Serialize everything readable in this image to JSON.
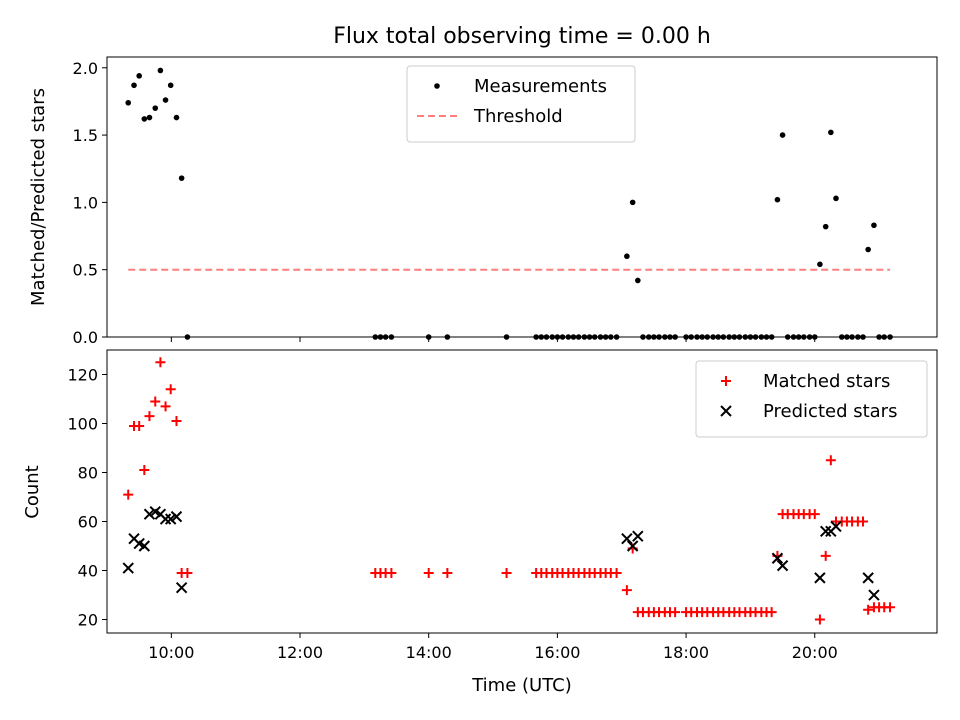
{
  "chart_data": [
    {
      "type": "scatter",
      "title": "Flux total observing time = 0.00 h",
      "xlabel": "",
      "ylabel": "Matched/Predicted stars",
      "xlim": [
        9.0,
        21.9
      ],
      "ylim": [
        0,
        2.08
      ],
      "yticks": [
        0.0,
        0.5,
        1.0,
        1.5,
        2.0
      ],
      "ytick_labels": [
        "0.0",
        "0.5",
        "1.0",
        "1.5",
        "2.0"
      ],
      "legend_position": "top-center",
      "series": [
        {
          "name": "Measurements",
          "marker": "dot",
          "color": "#000000",
          "points": [
            [
              9.33,
              1.74
            ],
            [
              9.42,
              1.87
            ],
            [
              9.5,
              1.94
            ],
            [
              9.58,
              1.62
            ],
            [
              9.66,
              1.63
            ],
            [
              9.75,
              1.7
            ],
            [
              9.83,
              1.98
            ],
            [
              9.91,
              1.76
            ],
            [
              9.99,
              1.87
            ],
            [
              10.08,
              1.63
            ],
            [
              10.16,
              1.18
            ],
            [
              10.25,
              0.0
            ],
            [
              13.17,
              0.0
            ],
            [
              13.25,
              0.0
            ],
            [
              13.33,
              0.0
            ],
            [
              13.42,
              0.0
            ],
            [
              14.0,
              0.0
            ],
            [
              14.29,
              0.0
            ],
            [
              15.21,
              0.0
            ],
            [
              15.67,
              0.0
            ],
            [
              15.75,
              0.0
            ],
            [
              15.83,
              0.0
            ],
            [
              15.92,
              0.0
            ],
            [
              16.0,
              0.0
            ],
            [
              16.08,
              0.0
            ],
            [
              16.17,
              0.0
            ],
            [
              16.25,
              0.0
            ],
            [
              16.33,
              0.0
            ],
            [
              16.42,
              0.0
            ],
            [
              16.5,
              0.0
            ],
            [
              16.58,
              0.0
            ],
            [
              16.67,
              0.0
            ],
            [
              16.75,
              0.0
            ],
            [
              16.83,
              0.0
            ],
            [
              16.92,
              0.0
            ],
            [
              17.08,
              0.6
            ],
            [
              17.17,
              1.0
            ],
            [
              17.25,
              0.42
            ],
            [
              17.33,
              0.0
            ],
            [
              17.42,
              0.0
            ],
            [
              17.5,
              0.0
            ],
            [
              17.58,
              0.0
            ],
            [
              17.67,
              0.0
            ],
            [
              17.75,
              0.0
            ],
            [
              17.83,
              0.0
            ],
            [
              18.0,
              0.0
            ],
            [
              18.08,
              0.0
            ],
            [
              18.17,
              0.0
            ],
            [
              18.25,
              0.0
            ],
            [
              18.33,
              0.0
            ],
            [
              18.42,
              0.0
            ],
            [
              18.5,
              0.0
            ],
            [
              18.58,
              0.0
            ],
            [
              18.67,
              0.0
            ],
            [
              18.75,
              0.0
            ],
            [
              18.83,
              0.0
            ],
            [
              18.92,
              0.0
            ],
            [
              19.0,
              0.0
            ],
            [
              19.08,
              0.0
            ],
            [
              19.17,
              0.0
            ],
            [
              19.25,
              0.0
            ],
            [
              19.33,
              0.0
            ],
            [
              19.42,
              1.02
            ],
            [
              19.5,
              1.5
            ],
            [
              19.58,
              0.0
            ],
            [
              19.67,
              0.0
            ],
            [
              19.75,
              0.0
            ],
            [
              19.83,
              0.0
            ],
            [
              19.92,
              0.0
            ],
            [
              20.0,
              0.0
            ],
            [
              20.08,
              0.54
            ],
            [
              20.17,
              0.82
            ],
            [
              20.25,
              1.52
            ],
            [
              20.33,
              1.03
            ],
            [
              20.42,
              0.0
            ],
            [
              20.5,
              0.0
            ],
            [
              20.58,
              0.0
            ],
            [
              20.67,
              0.0
            ],
            [
              20.75,
              0.0
            ],
            [
              20.83,
              0.65
            ],
            [
              20.92,
              0.83
            ],
            [
              21.0,
              0.0
            ],
            [
              21.08,
              0.0
            ],
            [
              21.17,
              0.0
            ]
          ]
        },
        {
          "name": "Threshold",
          "type": "line",
          "style": "dashed",
          "color": "#ff7f7f",
          "points": [
            [
              9.33,
              0.5
            ],
            [
              21.17,
              0.5
            ]
          ]
        }
      ]
    },
    {
      "type": "scatter",
      "title": "",
      "xlabel": "Time (UTC)",
      "ylabel": "Count",
      "xlim": [
        9.0,
        21.9
      ],
      "ylim": [
        14.5,
        130
      ],
      "xticks": [
        10,
        12,
        14,
        16,
        18,
        20
      ],
      "xtick_labels": [
        "10:00",
        "12:00",
        "14:00",
        "16:00",
        "18:00",
        "20:00"
      ],
      "yticks": [
        20,
        40,
        60,
        80,
        100,
        120
      ],
      "ytick_labels": [
        "20",
        "40",
        "60",
        "80",
        "100",
        "120"
      ],
      "legend_position": "top-right",
      "series": [
        {
          "name": "Matched stars",
          "marker": "plus",
          "color": "#ff0000",
          "points": [
            [
              9.33,
              71
            ],
            [
              9.42,
              99
            ],
            [
              9.5,
              99
            ],
            [
              9.58,
              81
            ],
            [
              9.66,
              103
            ],
            [
              9.75,
              109
            ],
            [
              9.83,
              125
            ],
            [
              9.91,
              107
            ],
            [
              9.99,
              114
            ],
            [
              10.08,
              101
            ],
            [
              10.16,
              39
            ],
            [
              10.25,
              39
            ],
            [
              13.17,
              39
            ],
            [
              13.25,
              39
            ],
            [
              13.33,
              39
            ],
            [
              13.42,
              39
            ],
            [
              14.0,
              39
            ],
            [
              14.29,
              39
            ],
            [
              15.21,
              39
            ],
            [
              15.67,
              39
            ],
            [
              15.75,
              39
            ],
            [
              15.83,
              39
            ],
            [
              15.92,
              39
            ],
            [
              16.0,
              39
            ],
            [
              16.08,
              39
            ],
            [
              16.17,
              39
            ],
            [
              16.25,
              39
            ],
            [
              16.33,
              39
            ],
            [
              16.42,
              39
            ],
            [
              16.5,
              39
            ],
            [
              16.58,
              39
            ],
            [
              16.67,
              39
            ],
            [
              16.75,
              39
            ],
            [
              16.83,
              39
            ],
            [
              16.92,
              39
            ],
            [
              17.08,
              32
            ],
            [
              17.17,
              49
            ],
            [
              17.25,
              23
            ],
            [
              17.33,
              23
            ],
            [
              17.42,
              23
            ],
            [
              17.5,
              23
            ],
            [
              17.58,
              23
            ],
            [
              17.67,
              23
            ],
            [
              17.75,
              23
            ],
            [
              17.83,
              23
            ],
            [
              18.0,
              23
            ],
            [
              18.08,
              23
            ],
            [
              18.17,
              23
            ],
            [
              18.25,
              23
            ],
            [
              18.33,
              23
            ],
            [
              18.42,
              23
            ],
            [
              18.5,
              23
            ],
            [
              18.58,
              23
            ],
            [
              18.67,
              23
            ],
            [
              18.75,
              23
            ],
            [
              18.83,
              23
            ],
            [
              18.92,
              23
            ],
            [
              19.0,
              23
            ],
            [
              19.08,
              23
            ],
            [
              19.17,
              23
            ],
            [
              19.25,
              23
            ],
            [
              19.33,
              23
            ],
            [
              19.42,
              46
            ],
            [
              19.5,
              63
            ],
            [
              19.58,
              63
            ],
            [
              19.67,
              63
            ],
            [
              19.75,
              63
            ],
            [
              19.83,
              63
            ],
            [
              19.92,
              63
            ],
            [
              20.0,
              63
            ],
            [
              20.08,
              20
            ],
            [
              20.17,
              46
            ],
            [
              20.25,
              85
            ],
            [
              20.33,
              60
            ],
            [
              20.42,
              60
            ],
            [
              20.5,
              60
            ],
            [
              20.58,
              60
            ],
            [
              20.67,
              60
            ],
            [
              20.75,
              60
            ],
            [
              20.83,
              24
            ],
            [
              20.92,
              25
            ],
            [
              21.0,
              25
            ],
            [
              21.08,
              25
            ],
            [
              21.17,
              25
            ]
          ]
        },
        {
          "name": "Predicted stars",
          "marker": "x",
          "color": "#000000",
          "points": [
            [
              9.33,
              41
            ],
            [
              9.42,
              53
            ],
            [
              9.5,
              51
            ],
            [
              9.58,
              50
            ],
            [
              9.66,
              63
            ],
            [
              9.75,
              64
            ],
            [
              9.83,
              63
            ],
            [
              9.91,
              61
            ],
            [
              9.99,
              61
            ],
            [
              10.08,
              62
            ],
            [
              10.16,
              33
            ],
            [
              17.08,
              53
            ],
            [
              17.17,
              50
            ],
            [
              17.25,
              54
            ],
            [
              19.42,
              45
            ],
            [
              19.5,
              42
            ],
            [
              20.08,
              37
            ],
            [
              20.17,
              56
            ],
            [
              20.25,
              56
            ],
            [
              20.33,
              58
            ],
            [
              20.83,
              37
            ],
            [
              20.92,
              30
            ]
          ]
        }
      ]
    }
  ]
}
